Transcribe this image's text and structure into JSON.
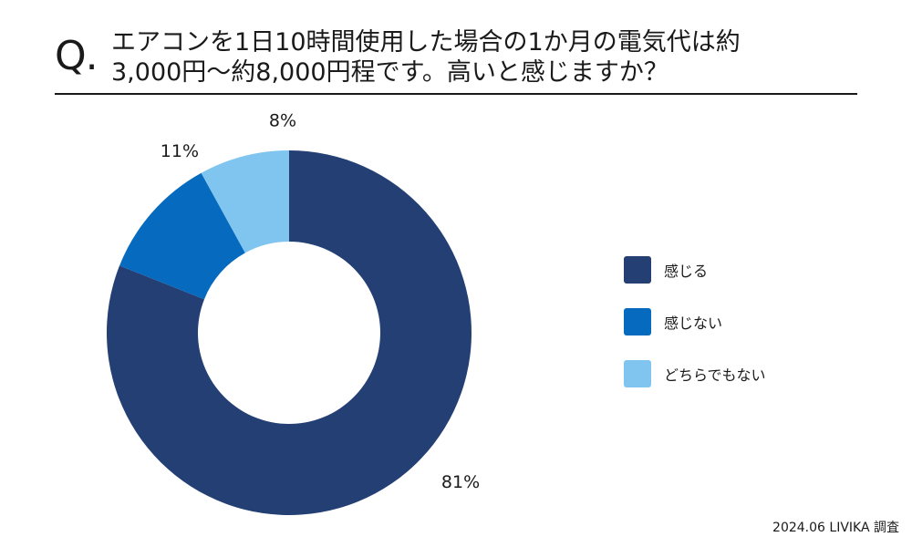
{
  "header": {
    "q_mark": "Q.",
    "question_line1": "エアコンを1日10時間使用した場合の1か月の電気代は約",
    "question_line2": "3,000円～約8,000円程です。高いと感じますか？"
  },
  "chart_data": {
    "type": "pie",
    "variant": "donut",
    "title": "エアコンを1日10時間使用した場合の1か月の電気代は約3,000円～約8,000円程です。高いと感じますか？",
    "categories": [
      "感じる",
      "感じない",
      "どちらでもない"
    ],
    "values": [
      81,
      11,
      8
    ],
    "data_labels": [
      "81%",
      "11%",
      "8%"
    ],
    "unit": "%",
    "colors": [
      "#233f74",
      "#066abf",
      "#7fc5ef"
    ],
    "legend_position": "right"
  },
  "legend": {
    "items": [
      {
        "label": "感じる",
        "color": "#233f74"
      },
      {
        "label": "感じない",
        "color": "#066abf"
      },
      {
        "label": "どちらでもない",
        "color": "#7fc5ef"
      }
    ]
  },
  "footer": {
    "source": "2024.06 LIVIKA 調査"
  }
}
